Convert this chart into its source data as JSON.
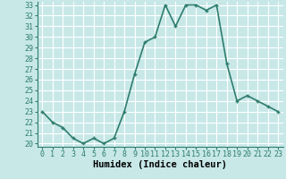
{
  "x": [
    0,
    1,
    2,
    3,
    4,
    5,
    6,
    7,
    8,
    9,
    10,
    11,
    12,
    13,
    14,
    15,
    16,
    17,
    18,
    19,
    20,
    21,
    22,
    23
  ],
  "y": [
    23,
    22,
    21.5,
    20.5,
    20,
    20.5,
    20,
    20.5,
    23,
    26.5,
    29.5,
    30,
    33,
    31,
    33,
    33,
    32.5,
    33,
    27.5,
    24,
    24.5,
    24,
    23.5,
    23
  ],
  "line_color": "#2e7d6e",
  "marker": "+",
  "bg_color": "#c8e8e8",
  "grid_color": "#ffffff",
  "xlabel": "Humidex (Indice chaleur)",
  "ylim": [
    20,
    33
  ],
  "xlim": [
    -0.5,
    23.5
  ],
  "yticks": [
    20,
    21,
    22,
    23,
    24,
    25,
    26,
    27,
    28,
    29,
    30,
    31,
    32,
    33
  ],
  "xticks": [
    0,
    1,
    2,
    3,
    4,
    5,
    6,
    7,
    8,
    9,
    10,
    11,
    12,
    13,
    14,
    15,
    16,
    17,
    18,
    19,
    20,
    21,
    22,
    23
  ],
  "xlabel_fontsize": 7.5,
  "tick_fontsize": 6,
  "line_width": 1.2,
  "marker_size": 3.5
}
